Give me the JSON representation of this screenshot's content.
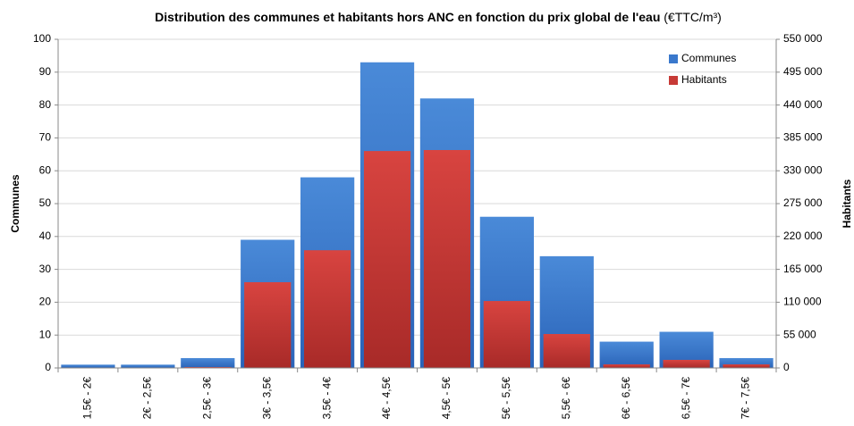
{
  "chart_data": {
    "type": "bar",
    "title": "Distribution des communes et habitants hors ANC en fonction du prix global de l'eau",
    "title_unit": "(€TTC/m³)",
    "y_label": "Communes",
    "y2_label": "Habitants",
    "categories": [
      "1,5€ - 2€",
      "2€ - 2,5€",
      "2,5€ - 3€",
      "3€ - 3,5€",
      "3,5€ - 4€",
      "4€ - 4,5€",
      "4,5€ - 5€",
      "5€ - 5,5€",
      "5,5€ - 6€",
      "6€ - 6,5€",
      "6,5€ - 7€",
      "7€ - 7,5€"
    ],
    "series": [
      {
        "name": "Communes",
        "color": "#3a78cc",
        "values": [
          1,
          1,
          3,
          39,
          58,
          93,
          82,
          46,
          34,
          8,
          11,
          3
        ]
      },
      {
        "name": "Habitants",
        "color": "#c73a36",
        "axis": "y2",
        "values": [
          500,
          500,
          1500,
          143500,
          197000,
          363000,
          364700,
          112000,
          56800,
          6000,
          13500,
          6000
        ]
      }
    ],
    "ylim": [
      0,
      100
    ],
    "yticks": [
      0,
      10,
      20,
      30,
      40,
      50,
      60,
      70,
      80,
      90,
      100
    ],
    "y2lim": [
      0,
      550000
    ],
    "y2ticks": [
      0,
      {
        "value": 55000,
        "label": "55 000"
      },
      {
        "value": 110000,
        "label": "110 000"
      },
      {
        "value": 165000,
        "label": "165 000"
      },
      {
        "value": 220000,
        "label": "220 000"
      },
      {
        "value": 275000,
        "label": "275 000"
      },
      {
        "value": 330000,
        "label": "330 000"
      },
      {
        "value": 385000,
        "label": "385 000"
      },
      {
        "value": 440000,
        "label": "440 000"
      },
      {
        "value": 495000,
        "label": "495 000"
      },
      {
        "value": 550000,
        "label": "550 000"
      }
    ],
    "grid": true,
    "legend": "top-right"
  }
}
